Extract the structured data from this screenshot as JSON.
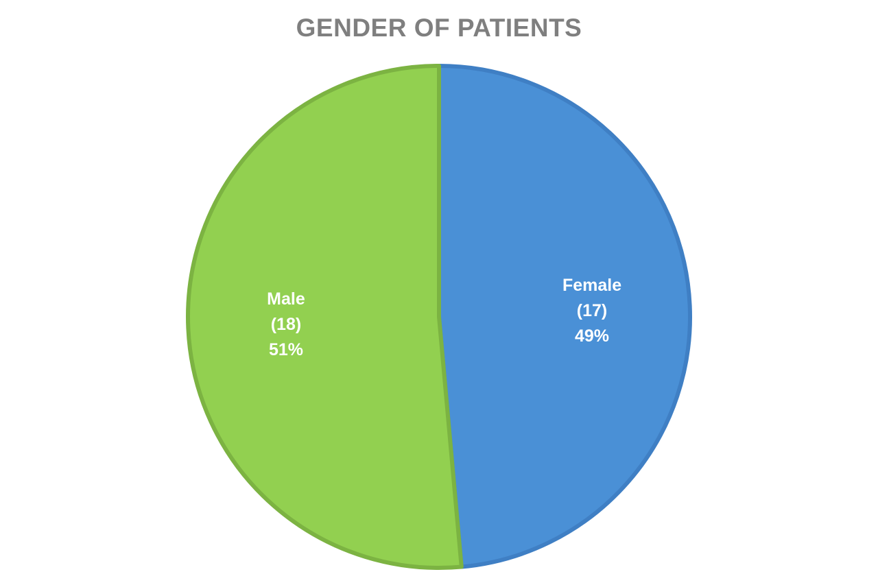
{
  "chart_data": {
    "type": "pie",
    "title": "GENDER OF PATIENTS",
    "slices": [
      {
        "name": "Female",
        "count_label": "(17)",
        "percent_label": "49%",
        "value": 17,
        "color": "#4a90d6",
        "edge_color": "#3f7fc4"
      },
      {
        "name": "Male",
        "count_label": "(18)",
        "percent_label": "51%",
        "value": 18,
        "color": "#92d050",
        "edge_color": "#7cb342"
      }
    ],
    "start_angle_deg": 0,
    "direction": "clockwise"
  }
}
